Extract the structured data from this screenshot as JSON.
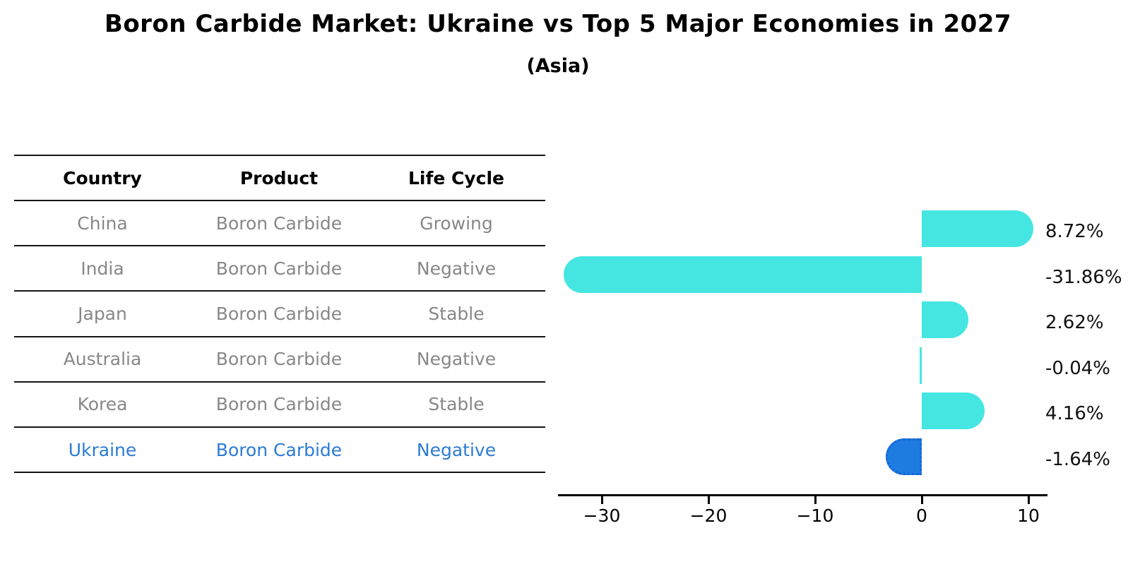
{
  "title": "Boron Carbide Market: Ukraine vs Top 5 Major Economies in 2027",
  "subtitle": "(Asia)",
  "table": {
    "headers": [
      "Country",
      "Product",
      "Life Cycle"
    ],
    "rows": [
      {
        "country": "China",
        "product": "Boron Carbide",
        "life_cycle": "Growing",
        "highlight": false
      },
      {
        "country": "India",
        "product": "Boron Carbide",
        "life_cycle": "Negative",
        "highlight": false
      },
      {
        "country": "Japan",
        "product": "Boron Carbide",
        "life_cycle": "Stable",
        "highlight": false
      },
      {
        "country": "Australia",
        "product": "Boron Carbide",
        "life_cycle": "Negative",
        "highlight": false
      },
      {
        "country": "Korea",
        "product": "Boron Carbide",
        "life_cycle": "Stable",
        "highlight": false
      },
      {
        "country": "Ukraine",
        "product": "Boron Carbide",
        "life_cycle": "Negative",
        "highlight": true
      }
    ]
  },
  "chart_data": {
    "type": "bar",
    "orientation": "horizontal",
    "categories": [
      "China",
      "India",
      "Japan",
      "Australia",
      "Korea",
      "Ukraine"
    ],
    "values": [
      8.72,
      -31.86,
      2.62,
      -0.04,
      4.16,
      -1.64
    ],
    "value_labels": [
      "8.72%",
      "-31.86%",
      "2.62%",
      "-0.04%",
      "4.16%",
      "-1.64%"
    ],
    "x_ticks": [
      -30,
      -20,
      -10,
      0,
      10
    ],
    "x_tick_labels": [
      "−30",
      "−20",
      "−10",
      "0",
      "10"
    ],
    "xlim": [
      -34.1,
      11.8
    ],
    "grid": false,
    "legend": "none",
    "highlight_index": 5,
    "colors": {
      "bar_default": "#45e6e1",
      "bar_highlight": "#1e7be0",
      "bar_highlight_edge": "#1565d8"
    }
  }
}
